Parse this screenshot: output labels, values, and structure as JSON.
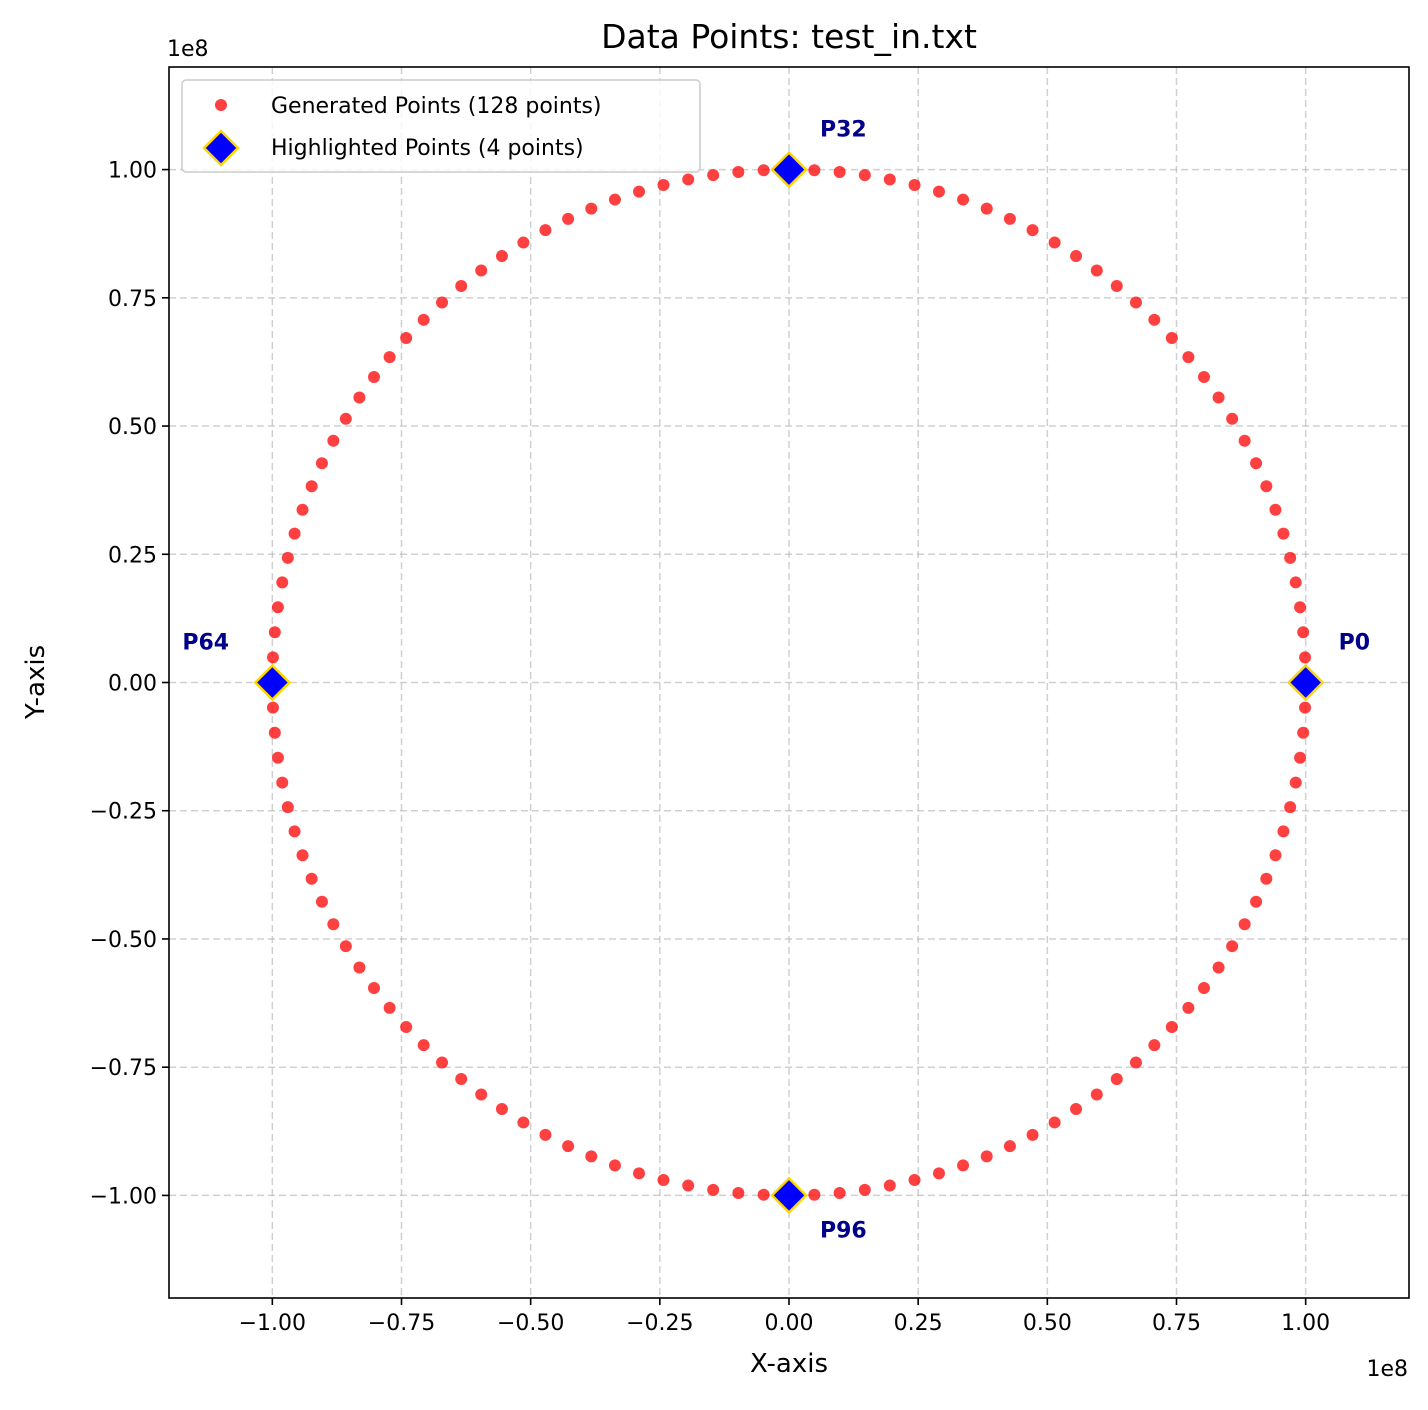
{
  "chart_data": {
    "type": "scatter",
    "title": "Data Points: test_in.txt",
    "xlabel": "X-axis",
    "ylabel": "Y-axis",
    "x_offset_label": "1e8",
    "y_offset_label": "1e8",
    "xlim": [
      -1.2,
      1.2
    ],
    "ylim": [
      -1.2,
      1.2
    ],
    "scale_factor": 100000000,
    "x_ticks": [
      -1.0,
      -0.75,
      -0.5,
      -0.25,
      0.0,
      0.25,
      0.5,
      0.75,
      1.0
    ],
    "x_tick_labels": [
      "−1.00",
      "−0.75",
      "−0.50",
      "−0.25",
      "0.00",
      "0.25",
      "0.50",
      "0.75",
      "1.00"
    ],
    "y_ticks": [
      1.0,
      0.75,
      0.5,
      0.25,
      0.0,
      -0.25,
      -0.5,
      -0.75,
      -1.0
    ],
    "y_tick_labels": [
      "1.00",
      "0.75",
      "0.50",
      "0.25",
      "0.00",
      "−0.25",
      "−0.50",
      "−0.75",
      "−1.00"
    ],
    "grid": true,
    "legend_position": "top-left",
    "series": [
      {
        "name": "Generated Points (128 points)",
        "marker": "circle",
        "color": "#ff0000",
        "count": 128,
        "shape": "circle of radius 1.0e8 centered at origin, points evenly spaced by angle starting at angle 0",
        "radius": 1.0
      },
      {
        "name": "Highlighted Points (4 points)",
        "marker": "diamond",
        "color": "#0000ff",
        "edge_color": "#ffd700",
        "points": [
          {
            "label": "P0",
            "x": 1.0,
            "y": 0.0
          },
          {
            "label": "P32",
            "x": 0.0,
            "y": 1.0
          },
          {
            "label": "P64",
            "x": -1.0,
            "y": 0.0
          },
          {
            "label": "P96",
            "x": 0.0,
            "y": -1.0
          }
        ]
      }
    ],
    "annotation_color": "#00008b"
  }
}
